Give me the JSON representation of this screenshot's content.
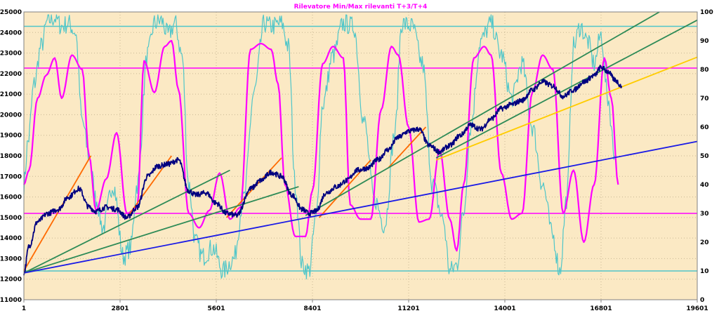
{
  "chart_data": {
    "type": "line",
    "title": "Rilevatore Min/Max rilevanti T+3/T+4",
    "colors": {
      "plot_background": "#fbe9c4",
      "grid_dots": "#c8b894",
      "price": "#000080",
      "oscillator_fast": "#4fc6c9",
      "oscillator_slow": "#ff00ff",
      "trend_orange": "#ff6a00",
      "trend_green": "#2e8b57",
      "trend_yellow": "#ffcc00",
      "trend_blue": "#1a1ae6"
    },
    "x_axis": {
      "ticks": [
        1,
        2801,
        5601,
        8401,
        11201,
        14001,
        16801,
        19601
      ],
      "tick_labels": [
        "1",
        "2801",
        "5601",
        "8401",
        "11201",
        "14001",
        "16801",
        "19601"
      ],
      "range": [
        1,
        19601
      ]
    },
    "y_left": {
      "range": [
        11000,
        25000
      ],
      "ticks": [
        11000,
        12000,
        13000,
        14000,
        15000,
        16000,
        17000,
        18000,
        19000,
        20000,
        21000,
        22000,
        23000,
        24000,
        25000
      ],
      "tick_labels": [
        "11000",
        "12000",
        "13000",
        "14000",
        "15000",
        "16000",
        "17000",
        "18000",
        "19000",
        "20000",
        "21000",
        "22000",
        "23000",
        "24000",
        "25000"
      ]
    },
    "y_right": {
      "range": [
        0,
        100
      ],
      "ticks": [
        0,
        10,
        20,
        30,
        40,
        50,
        60,
        70,
        80,
        90,
        100
      ],
      "tick_labels": [
        "0",
        "10",
        "20",
        "30",
        "40",
        "50",
        "60",
        "70",
        "80",
        "90",
        "100"
      ]
    },
    "reference_lines": [
      {
        "color": "cyan",
        "axis": "right",
        "value": 95
      },
      {
        "color": "magenta",
        "axis": "right",
        "value": 80.5
      },
      {
        "color": "magenta",
        "axis": "right",
        "value": 30
      },
      {
        "color": "cyan",
        "axis": "right",
        "value": 10
      }
    ],
    "series": [
      {
        "axis": "left",
        "color": "price",
        "x": [
          1,
          150,
          400,
          700,
          1000,
          1300,
          1600,
          1900,
          2100,
          2400,
          2700,
          3000,
          3300,
          3600,
          3900,
          4200,
          4500,
          4800,
          5000,
          5300,
          5600,
          5900,
          6200,
          6600,
          6900,
          7200,
          7500,
          7800,
          8100,
          8300,
          8500,
          8800,
          9100,
          9400,
          9700,
          10000,
          10300,
          10600,
          10900,
          11200,
          11500,
          11800,
          12100,
          12400,
          12700,
          13000,
          13300,
          13600,
          13900,
          14200,
          14500,
          14800,
          15100,
          15400,
          15700,
          16000,
          16300,
          16600,
          16800,
          17000,
          17200,
          17400
        ],
        "values": [
          12300,
          13600,
          14800,
          15200,
          15400,
          16000,
          16400,
          15500,
          15300,
          15500,
          15400,
          15000,
          15500,
          17000,
          17500,
          17600,
          17800,
          16300,
          16100,
          16200,
          15700,
          15200,
          15100,
          16400,
          16800,
          17200,
          17000,
          16100,
          15400,
          15200,
          15300,
          16200,
          16500,
          16800,
          17300,
          17400,
          17800,
          18300,
          18900,
          19200,
          19300,
          18500,
          18200,
          18500,
          19000,
          19500,
          19300,
          19800,
          20300,
          20500,
          20700,
          21200,
          21600,
          21400,
          20900,
          21200,
          21600,
          21900,
          22300,
          22100,
          21700,
          21400
        ]
      },
      {
        "axis": "right",
        "color": "oscillator_slow",
        "x": [
          1,
          150,
          400,
          650,
          900,
          1100,
          1400,
          1700,
          1900,
          2100,
          2400,
          2700,
          3000,
          3300,
          3500,
          3800,
          4100,
          4300,
          4500,
          4800,
          5100,
          5400,
          5700,
          6000,
          6300,
          6600,
          6900,
          7200,
          7400,
          7600,
          7900,
          8200,
          8400,
          8700,
          9000,
          9300,
          9500,
          9800,
          10100,
          10400,
          10700,
          10900,
          11200,
          11500,
          11800,
          12100,
          12400,
          12600,
          12800,
          13100,
          13400,
          13600,
          13900,
          14200,
          14500,
          14800,
          15100,
          15400,
          15700,
          16000,
          16300,
          16600,
          16900,
          17100,
          17300
        ],
        "values": [
          40,
          45,
          70,
          78,
          84,
          70,
          85,
          80,
          50,
          31,
          42,
          58,
          30,
          32,
          83,
          72,
          88,
          90,
          73,
          30,
          25,
          31,
          44,
          28,
          32,
          87,
          89,
          87,
          75,
          40,
          22,
          22,
          38,
          82,
          88,
          84,
          33,
          28,
          28,
          66,
          88,
          85,
          60,
          27,
          28,
          52,
          28,
          17,
          40,
          84,
          88,
          85,
          44,
          28,
          30,
          72,
          85,
          80,
          30,
          45,
          20,
          40,
          84,
          70,
          40
        ]
      },
      {
        "axis": "right",
        "color": "oscillator_fast",
        "x": [
          1,
          120,
          300,
          500,
          700,
          900,
          1100,
          1300,
          1500,
          1700,
          1900,
          2100,
          2300,
          2600,
          2900,
          3100,
          3300,
          3600,
          3800,
          4000,
          4200,
          4400,
          4600,
          4800,
          5000,
          5200,
          5500,
          5800,
          6100,
          6400,
          6700,
          7000,
          7200,
          7500,
          7700,
          7900,
          8100,
          8300,
          8500,
          8700,
          9000,
          9300,
          9600,
          9900,
          10200,
          10500,
          10800,
          11000,
          11300,
          11600,
          11900,
          12200,
          12400,
          12600,
          12800,
          13000,
          13300,
          13600,
          13900,
          14200,
          14500,
          14800,
          15100,
          15400,
          15600,
          15800,
          16000,
          16200,
          16400,
          16600,
          16800,
          17000,
          17200
        ],
        "values": [
          40,
          55,
          75,
          88,
          97,
          98,
          95,
          96,
          93,
          62,
          50,
          35,
          25,
          40,
          15,
          18,
          40,
          85,
          96,
          97,
          92,
          96,
          85,
          40,
          20,
          15,
          18,
          10,
          14,
          35,
          72,
          96,
          95,
          96,
          88,
          40,
          12,
          10,
          28,
          68,
          85,
          96,
          95,
          62,
          35,
          26,
          58,
          96,
          95,
          82,
          40,
          28,
          10,
          12,
          30,
          60,
          90,
          96,
          85,
          70,
          82,
          60,
          40,
          22,
          10,
          35,
          88,
          95,
          90,
          82,
          92,
          70,
          50
        ]
      }
    ],
    "trend_lines": [
      {
        "color": "trend_orange",
        "axis": "left",
        "from": [
          1,
          12400
        ],
        "to": [
          1950,
          18000
        ]
      },
      {
        "color": "trend_orange",
        "axis": "left",
        "from": [
          3000,
          15000
        ],
        "to": [
          4300,
          18000
        ]
      },
      {
        "color": "trend_orange",
        "axis": "left",
        "from": [
          5900,
          15000
        ],
        "to": [
          7500,
          17900
        ]
      },
      {
        "color": "trend_orange",
        "axis": "left",
        "from": [
          8600,
          15000
        ],
        "to": [
          10100,
          17800
        ]
      },
      {
        "color": "trend_orange",
        "axis": "left",
        "from": [
          10600,
          17400
        ],
        "to": [
          11700,
          19400
        ]
      },
      {
        "color": "trend_green",
        "axis": "left",
        "from": [
          1,
          12300
        ],
        "to": [
          6000,
          17300
        ]
      },
      {
        "color": "trend_green",
        "axis": "left",
        "from": [
          1,
          12300
        ],
        "to": [
          8000,
          16500
        ]
      },
      {
        "color": "trend_green",
        "axis": "left",
        "from": [
          8200,
          15100
        ],
        "to": [
          18500,
          25000
        ]
      },
      {
        "color": "trend_green",
        "axis": "left",
        "from": [
          12000,
          17900
        ],
        "to": [
          19601,
          24600
        ]
      },
      {
        "color": "trend_yellow",
        "axis": "left",
        "from": [
          12000,
          17800
        ],
        "to": [
          19601,
          22800
        ]
      },
      {
        "color": "trend_blue",
        "axis": "left",
        "from": [
          1,
          12300
        ],
        "to": [
          19601,
          18700
        ]
      }
    ]
  }
}
